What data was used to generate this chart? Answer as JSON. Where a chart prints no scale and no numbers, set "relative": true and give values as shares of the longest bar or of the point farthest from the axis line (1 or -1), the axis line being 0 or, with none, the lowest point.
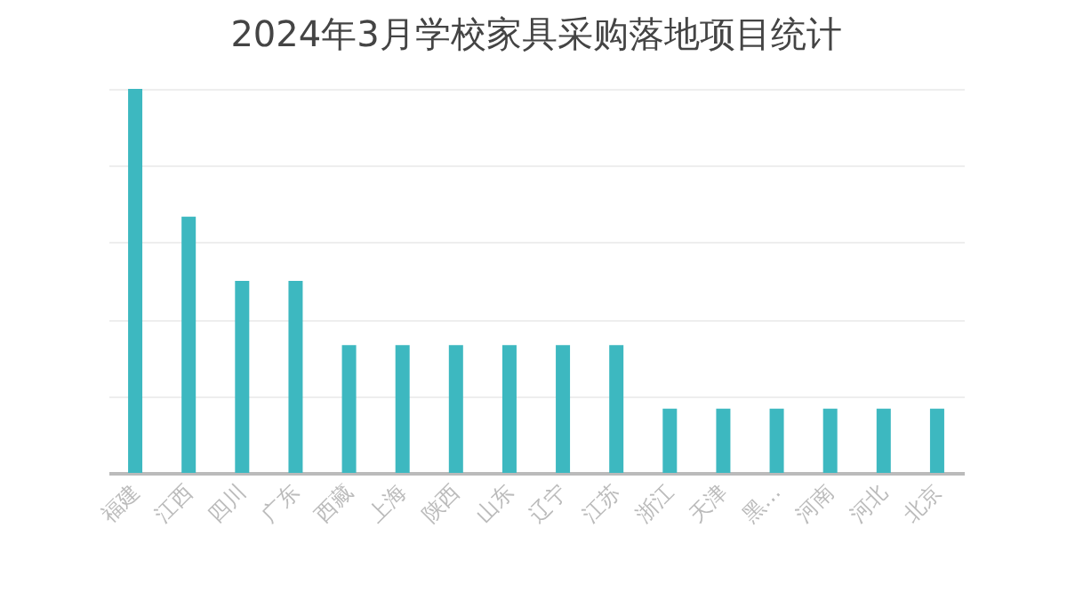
{
  "chart_data": {
    "type": "bar",
    "title": "2024年3月学校家具采购落地项目统计",
    "categories": [
      "福建",
      "江西",
      "四川",
      "广东",
      "西藏",
      "上海",
      "陕西",
      "山东",
      "辽宁",
      "江苏",
      "浙江",
      "天津",
      "黑…",
      "河南",
      "河北",
      "北京"
    ],
    "values": [
      1,
      0.667,
      0.5,
      0.5,
      0.333,
      0.333,
      0.333,
      0.333,
      0.333,
      0.333,
      0.167,
      0.167,
      0.167,
      0.167,
      0.167,
      0.167
    ],
    "color": "#3db8c0",
    "relative": true,
    "grid": true
  }
}
